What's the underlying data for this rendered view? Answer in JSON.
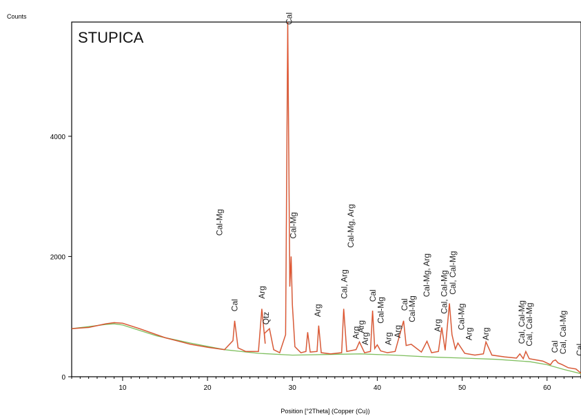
{
  "chart_data": {
    "type": "line",
    "title": "STUPICA",
    "xlabel": "Position [°2Theta] (Copper (Cu))",
    "ylabel": "Counts",
    "xlim": [
      4,
      64
    ],
    "ylim": [
      0,
      5900
    ],
    "x_ticks": [
      10,
      20,
      30,
      40,
      50,
      60
    ],
    "y_ticks": [
      0,
      2000,
      4000
    ],
    "colors": {
      "measured": "#e8502a",
      "measured_dark": "#7a3a1a",
      "background": "#7fbf5f"
    },
    "series": [
      {
        "x": [
          4,
          6,
          8,
          9,
          10,
          12,
          15,
          18,
          20,
          22,
          23,
          23.2,
          23.6,
          24.5,
          26,
          26.4,
          26.8,
          26.7,
          27.3,
          27.8,
          28.5,
          29.2,
          29.45,
          29.7,
          29.85,
          30,
          30.3,
          31,
          31.6,
          31.8,
          32.1,
          32.9,
          33.1,
          33.4,
          34.5,
          35.8,
          36.05,
          36.4,
          37.5,
          37.9,
          38.5,
          39.2,
          39.45,
          39.7,
          40,
          40.4,
          41.2,
          42.1,
          43.1,
          43.4,
          44,
          45.2,
          45.85,
          46.4,
          47.2,
          47.6,
          48,
          48.5,
          48.8,
          49.2,
          49.5,
          50.3,
          51.5,
          52.5,
          52.8,
          53.5,
          55,
          56.4,
          56.8,
          57.2,
          57.5,
          57.9,
          59.5,
          60.4,
          60.7,
          61,
          61.3,
          61.8,
          62.5,
          63.4,
          64
        ],
        "y": [
          800,
          820,
          880,
          900,
          890,
          800,
          650,
          540,
          490,
          450,
          600,
          930,
          480,
          420,
          420,
          1130,
          550,
          720,
          800,
          450,
          400,
          700,
          5900,
          1500,
          2000,
          1200,
          500,
          400,
          420,
          740,
          410,
          420,
          850,
          400,
          380,
          400,
          1130,
          420,
          450,
          580,
          400,
          420,
          1100,
          470,
          530,
          430,
          400,
          420,
          930,
          520,
          540,
          410,
          590,
          400,
          420,
          820,
          440,
          1220,
          700,
          460,
          560,
          390,
          360,
          380,
          580,
          360,
          330,
          310,
          380,
          300,
          420,
          300,
          260,
          200,
          260,
          280,
          230,
          200,
          150,
          130,
          60
        ]
      },
      {
        "x": [
          4,
          8,
          9,
          10,
          14,
          18,
          22,
          26,
          30,
          34,
          38,
          42,
          46,
          50,
          54,
          58,
          60,
          62,
          64
        ],
        "y": [
          800,
          870,
          880,
          860,
          680,
          560,
          450,
          390,
          360,
          370,
          380,
          360,
          330,
          310,
          290,
          250,
          200,
          120,
          50
        ]
      }
    ],
    "peak_labels": [
      {
        "text": "Cal-Mg",
        "x": 21.4,
        "y": 2300
      },
      {
        "text": "Cal",
        "x": 23.2,
        "y": 1040
      },
      {
        "text": "Arg",
        "x": 26.4,
        "y": 1250
      },
      {
        "text": "Qtz",
        "x": 26.9,
        "y": 820
      },
      {
        "text": "Cal",
        "x": 29.6,
        "y": 5900
      },
      {
        "text": "Cal-Mg",
        "x": 30.1,
        "y": 2250
      },
      {
        "text": "Arg",
        "x": 33.0,
        "y": 950
      },
      {
        "text": "Cal-Mg, Arg",
        "x": 36.9,
        "y": 2100
      },
      {
        "text": "Cal, Arg",
        "x": 36.1,
        "y": 1250
      },
      {
        "text": "Arg",
        "x": 37.5,
        "y": 580
      },
      {
        "text": "Arg",
        "x": 38.1,
        "y": 680
      },
      {
        "text": "Arg",
        "x": 38.6,
        "y": 480
      },
      {
        "text": "Cal",
        "x": 39.5,
        "y": 1200
      },
      {
        "text": "Cal-Mg",
        "x": 40.4,
        "y": 840
      },
      {
        "text": "Arg",
        "x": 41.3,
        "y": 480
      },
      {
        "text": "Arg",
        "x": 42.4,
        "y": 600
      },
      {
        "text": "Cal",
        "x": 43.2,
        "y": 1050
      },
      {
        "text": "Cal-Mg",
        "x": 44.1,
        "y": 860
      },
      {
        "text": "Cal-Mg, Arg",
        "x": 45.8,
        "y": 1280
      },
      {
        "text": "Arg",
        "x": 47.1,
        "y": 700
      },
      {
        "text": "Cal, Cal-Mg",
        "x": 47.9,
        "y": 1000
      },
      {
        "text": "Cal, Cal-Mg",
        "x": 48.9,
        "y": 1320
      },
      {
        "text": "Cal-Mg",
        "x": 49.9,
        "y": 730
      },
      {
        "text": "Arg",
        "x": 50.8,
        "y": 560
      },
      {
        "text": "Arg",
        "x": 52.8,
        "y": 560
      },
      {
        "text": "Cal, Cal-Mg",
        "x": 57.0,
        "y": 500
      },
      {
        "text": "Cal, Cal-Mg",
        "x": 57.9,
        "y": 460
      },
      {
        "text": "Cal",
        "x": 60.9,
        "y": 350
      },
      {
        "text": "Cal, Cal-Mg",
        "x": 61.9,
        "y": 330
      },
      {
        "text": "Cal",
        "x": 64.0,
        "y": 300
      }
    ]
  }
}
